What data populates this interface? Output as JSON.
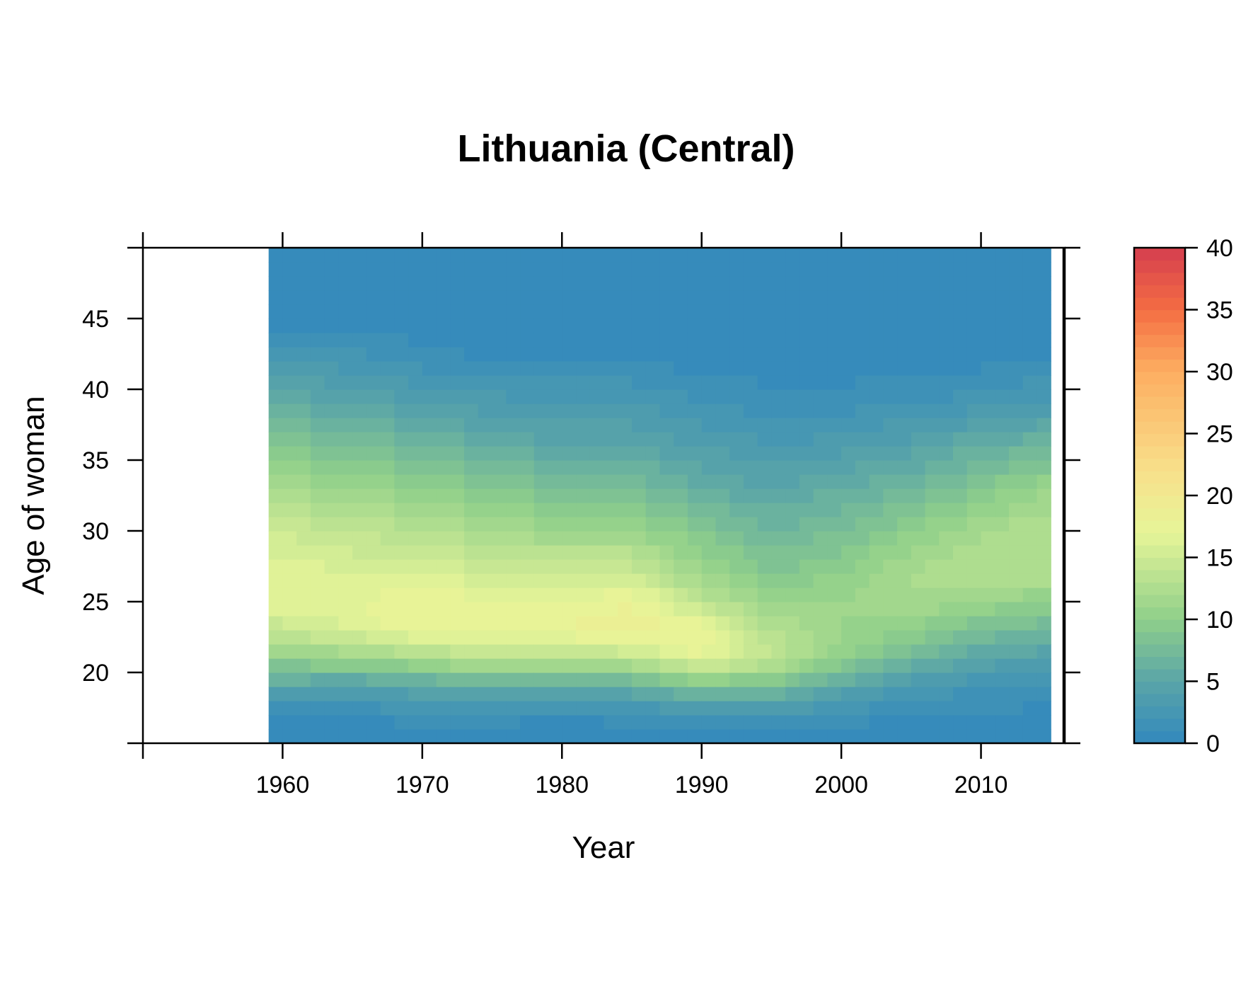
{
  "chart_data": {
    "type": "heatmap",
    "title": "Lithuania (Central)",
    "xlabel": "Year",
    "ylabel": "Age of woman",
    "xlim": [
      1950,
      2016
    ],
    "ylim": [
      15,
      50
    ],
    "x_ticks": [
      1960,
      1970,
      1980,
      1990,
      2000,
      2010
    ],
    "x_tick_labels": [
      "1960",
      "1970",
      "1980",
      "1990",
      "2000",
      "2010"
    ],
    "y_ticks": [
      20,
      25,
      30,
      35,
      40,
      45
    ],
    "y_tick_labels": [
      "20",
      "25",
      "30",
      "35",
      "40",
      "45"
    ],
    "data_year_range": [
      1959,
      2015
    ],
    "data_age_range": [
      15,
      50
    ],
    "colorbar": {
      "range": [
        0,
        40
      ],
      "ticks": [
        0,
        5,
        10,
        15,
        20,
        25,
        30,
        35,
        40
      ],
      "tick_labels": [
        "0",
        "5",
        "10",
        "15",
        "20",
        "25",
        "30",
        "35",
        "40"
      ],
      "color_stops": [
        {
          "value": 0,
          "color": "#3288bd"
        },
        {
          "value": 5,
          "color": "#5aa5a8"
        },
        {
          "value": 10,
          "color": "#8fcf8a"
        },
        {
          "value": 17,
          "color": "#e6f598"
        },
        {
          "value": 22,
          "color": "#f8e08b"
        },
        {
          "value": 30,
          "color": "#fdae61"
        },
        {
          "value": 35,
          "color": "#f46d43"
        },
        {
          "value": 40,
          "color": "#d53e4f"
        }
      ]
    },
    "profile_ages": [
      15,
      17,
      19,
      21,
      23,
      25,
      27,
      30,
      33,
      36,
      39,
      42,
      45,
      50
    ],
    "profiles": [
      {
        "year": 1959,
        "values": [
          0,
          1,
          5,
          10,
          14,
          17,
          17,
          15,
          12,
          9,
          6,
          3,
          0.5,
          0
        ]
      },
      {
        "year": 1965,
        "values": [
          0,
          1,
          4,
          11,
          16,
          17,
          16,
          14,
          11,
          8,
          5,
          2.5,
          0.5,
          0
        ]
      },
      {
        "year": 1970,
        "values": [
          0,
          1.5,
          5,
          12,
          18,
          18,
          16,
          13,
          10,
          7,
          4,
          1.5,
          0.3,
          0
        ]
      },
      {
        "year": 1975,
        "values": [
          0,
          1.5,
          6,
          14,
          18,
          17,
          15,
          12,
          9,
          6,
          3.5,
          1,
          0.2,
          0
        ]
      },
      {
        "year": 1980,
        "values": [
          0,
          1,
          5,
          13,
          18,
          17,
          15,
          11,
          8,
          5,
          3,
          1,
          0.2,
          0
        ]
      },
      {
        "year": 1985,
        "values": [
          0,
          1.5,
          6,
          14,
          19,
          18,
          15,
          11,
          8,
          5,
          3,
          1,
          0.2,
          0
        ]
      },
      {
        "year": 1990,
        "values": [
          0,
          2,
          8,
          17,
          18,
          14,
          11,
          9,
          6,
          4,
          2,
          0.6,
          0.1,
          0
        ]
      },
      {
        "year": 1995,
        "values": [
          0,
          2.5,
          8,
          14,
          13,
          11,
          9,
          7,
          5,
          3,
          1.5,
          0.4,
          0.1,
          0
        ]
      },
      {
        "year": 2000,
        "values": [
          0,
          1.5,
          5,
          10,
          11,
          11,
          10,
          8,
          6,
          3.5,
          1.5,
          0.4,
          0.1,
          0
        ]
      },
      {
        "year": 2005,
        "values": [
          0,
          1,
          3,
          7,
          10,
          12,
          12,
          10,
          7,
          4.5,
          2,
          0.5,
          0.1,
          0
        ]
      },
      {
        "year": 2010,
        "values": [
          0,
          1,
          2,
          5,
          8,
          11,
          13,
          12,
          9,
          6,
          2.5,
          0.7,
          0.1,
          0
        ]
      },
      {
        "year": 2015,
        "values": [
          0,
          0.5,
          1.5,
          4,
          7,
          10,
          13,
          13,
          11,
          7,
          3.5,
          1,
          0.1,
          0
        ]
      }
    ]
  }
}
